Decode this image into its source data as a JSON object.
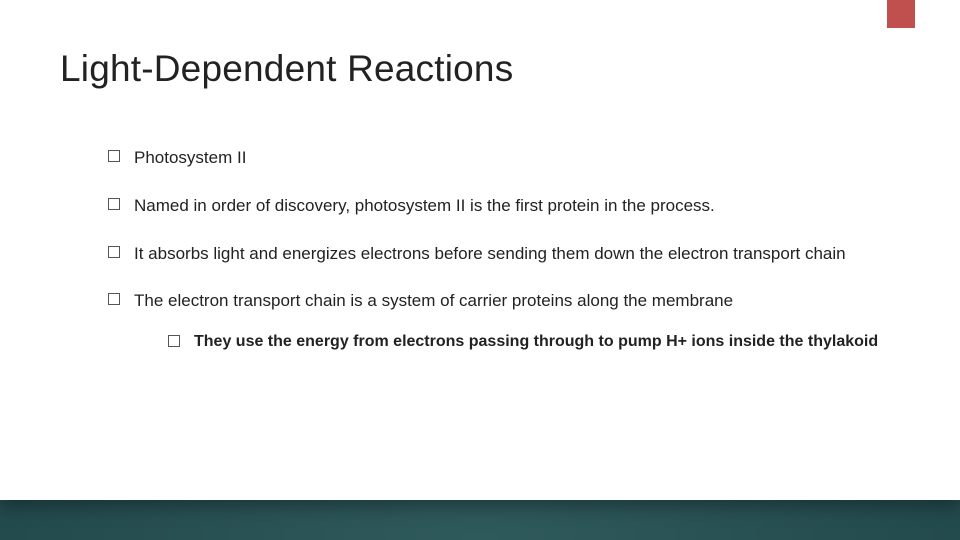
{
  "colors": {
    "accent": "#c0504d",
    "card_bg": "#ffffff",
    "text": "#222222",
    "bg_gradient_inner": "#2f5a5c",
    "bg_gradient_outer": "#152f36"
  },
  "title": "Light-Dependent Reactions",
  "bullets": [
    {
      "text": "Photosystem II"
    },
    {
      "text": "Named in order of discovery, photosystem II is the first protein in the process."
    },
    {
      "text": "It absorbs light and energizes electrons before sending them down the electron transport chain"
    },
    {
      "text": "The electron transport chain is a system of carrier proteins along the membrane",
      "sub": [
        {
          "text": "They use the energy from electrons passing through to pump H+ ions inside the thylakoid"
        }
      ]
    }
  ]
}
